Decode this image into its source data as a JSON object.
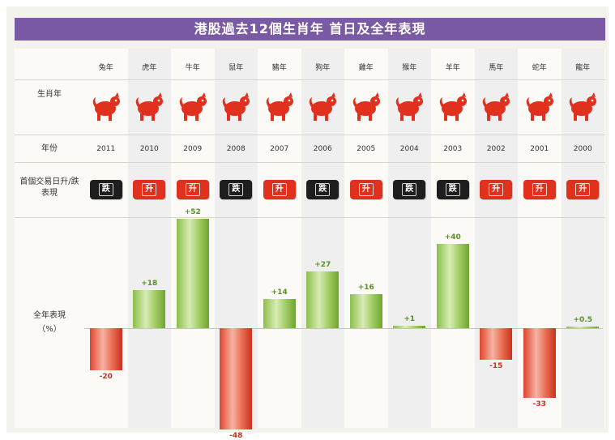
{
  "title": "港股過去12個生肖年 首日及全年表現",
  "row_labels": {
    "zodiac": "生肖年",
    "year": "年份",
    "first_day": "首個交易日升/跌表現",
    "annual": "全年表現",
    "unit": "（%）"
  },
  "animal_icons": [
    "rabbit-icon",
    "tiger-icon",
    "ox-icon",
    "rat-icon",
    "pig-icon",
    "dog-icon",
    "rooster-icon",
    "monkey-icon",
    "goat-icon",
    "horse-icon",
    "snake-icon",
    "dragon-icon"
  ],
  "colors": {
    "up": "#e0301e",
    "down": "#1e1e1e",
    "positive_bar": "#8cbf4a",
    "negative_bar": "#e0442c",
    "banner": "#7a5aa4"
  },
  "chart_data": {
    "type": "bar",
    "categories": [
      "兔年",
      "虎年",
      "牛年",
      "鼠年",
      "豬年",
      "狗年",
      "雞年",
      "猴年",
      "羊年",
      "馬年",
      "蛇年",
      "龍年"
    ],
    "years": [
      "2011",
      "2010",
      "2009",
      "2008",
      "2007",
      "2006",
      "2005",
      "2004",
      "2003",
      "2002",
      "2001",
      "2000"
    ],
    "first_day": [
      "跌",
      "升",
      "升",
      "跌",
      "升",
      "跌",
      "升",
      "跌",
      "跌",
      "升",
      "升",
      "升"
    ],
    "values": [
      -20,
      18,
      52,
      -48,
      14,
      27,
      16,
      1,
      40,
      -15,
      -33,
      0.5
    ],
    "value_labels": [
      "-20",
      "+18",
      "+52",
      "-48",
      "+14",
      "+27",
      "+16",
      "+1",
      "+40",
      "-15",
      "-33",
      "+0.5"
    ],
    "ylim": [
      -50,
      55
    ]
  }
}
